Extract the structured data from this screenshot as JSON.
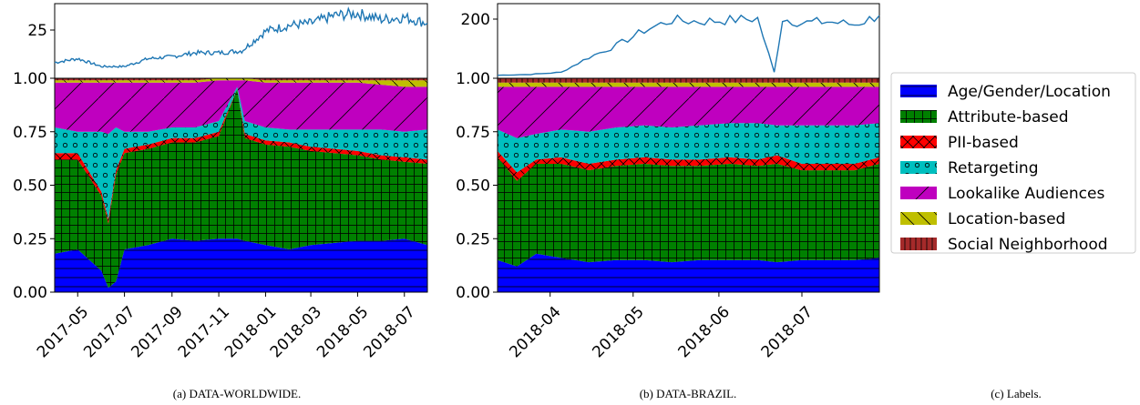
{
  "chart_data": [
    {
      "id": "worldwide",
      "type": "area",
      "caption": "(a) DATA-WORLDWIDE.",
      "stacked_normalized": true,
      "x_ticks": [
        "2017-05",
        "2017-07",
        "2017-09",
        "2017-11",
        "2018-01",
        "2018-03",
        "2018-05",
        "2018-07"
      ],
      "x_range": [
        "2017-04-01",
        "2018-07-31"
      ],
      "top_panel": {
        "type": "line",
        "y_ticks": [
          25
        ],
        "ylim": [
          0,
          38
        ],
        "x_dates": [
          "2017-04-01",
          "2017-05-01",
          "2017-06-01",
          "2017-07-01",
          "2017-08-01",
          "2017-09-01",
          "2017-10-01",
          "2017-11-01",
          "2017-12-01",
          "2018-01-01",
          "2018-02-01",
          "2018-03-01",
          "2018-04-01",
          "2018-05-01",
          "2018-06-01",
          "2018-07-01",
          "2018-07-31"
        ],
        "values": [
          8,
          10,
          6,
          6,
          10,
          11,
          13,
          13,
          14,
          24,
          27,
          28,
          32,
          33,
          30,
          31,
          28
        ]
      },
      "y_ticks": [
        "0.00",
        "0.25",
        "0.50",
        "0.75",
        "1.00"
      ],
      "ylim": [
        0,
        1
      ],
      "x_dates": [
        "2017-04-01",
        "2017-05-01",
        "2017-06-01",
        "2017-06-10",
        "2017-06-20",
        "2017-07-01",
        "2017-08-01",
        "2017-09-01",
        "2017-10-01",
        "2017-11-01",
        "2017-11-25",
        "2017-12-05",
        "2018-01-01",
        "2018-02-01",
        "2018-03-01",
        "2018-04-01",
        "2018-05-01",
        "2018-06-01",
        "2018-07-01",
        "2018-07-31"
      ],
      "series": [
        {
          "name": "Age/Gender/Location",
          "values": [
            0.18,
            0.2,
            0.1,
            0.02,
            0.05,
            0.2,
            0.22,
            0.25,
            0.24,
            0.25,
            0.25,
            0.24,
            0.22,
            0.2,
            0.22,
            0.23,
            0.24,
            0.24,
            0.25,
            0.22
          ]
        },
        {
          "name": "Attribute-based",
          "values": [
            0.44,
            0.42,
            0.35,
            0.3,
            0.5,
            0.45,
            0.45,
            0.45,
            0.46,
            0.48,
            0.7,
            0.48,
            0.47,
            0.48,
            0.44,
            0.42,
            0.4,
            0.38,
            0.36,
            0.38
          ]
        },
        {
          "name": "PII-based",
          "values": [
            0.03,
            0.03,
            0.02,
            0.02,
            0.02,
            0.02,
            0.02,
            0.02,
            0.02,
            0.02,
            0.0,
            0.02,
            0.02,
            0.02,
            0.02,
            0.02,
            0.02,
            0.02,
            0.02,
            0.02
          ]
        },
        {
          "name": "Retargeting",
          "values": [
            0.12,
            0.1,
            0.28,
            0.4,
            0.2,
            0.08,
            0.06,
            0.05,
            0.05,
            0.05,
            0.01,
            0.06,
            0.06,
            0.06,
            0.08,
            0.09,
            0.1,
            0.12,
            0.12,
            0.14
          ]
        },
        {
          "name": "Lookalike Audiences",
          "values": [
            0.21,
            0.23,
            0.23,
            0.24,
            0.21,
            0.23,
            0.23,
            0.21,
            0.21,
            0.19,
            0.03,
            0.19,
            0.21,
            0.22,
            0.22,
            0.22,
            0.22,
            0.21,
            0.21,
            0.2
          ]
        },
        {
          "name": "Location-based",
          "values": [
            0.01,
            0.01,
            0.01,
            0.01,
            0.01,
            0.01,
            0.01,
            0.01,
            0.01,
            0.01,
            0.01,
            0.01,
            0.01,
            0.01,
            0.01,
            0.01,
            0.01,
            0.02,
            0.03,
            0.03
          ]
        },
        {
          "name": "Social Neighborhood",
          "values": [
            0.01,
            0.01,
            0.01,
            0.01,
            0.01,
            0.01,
            0.01,
            0.01,
            0.01,
            0.0,
            0.0,
            0.0,
            0.01,
            0.01,
            0.01,
            0.01,
            0.01,
            0.01,
            0.01,
            0.01
          ]
        }
      ]
    },
    {
      "id": "brazil",
      "type": "area",
      "caption": "(b) DATA-BRAZIL.",
      "stacked_normalized": true,
      "x_ticks": [
        "2018-04",
        "2018-05",
        "2018-06",
        "2018-07"
      ],
      "x_range": [
        "2018-03-13",
        "2018-07-29"
      ],
      "top_panel": {
        "type": "line",
        "y_ticks": [
          200
        ],
        "ylim": [
          0,
          250
        ],
        "x_dates": [
          "2018-03-13",
          "2018-03-25",
          "2018-04-05",
          "2018-04-15",
          "2018-04-25",
          "2018-05-05",
          "2018-05-15",
          "2018-05-25",
          "2018-06-05",
          "2018-06-15",
          "2018-06-21",
          "2018-06-24",
          "2018-07-01",
          "2018-07-10",
          "2018-07-20",
          "2018-07-29"
        ],
        "values": [
          10,
          13,
          20,
          70,
          110,
          160,
          195,
          190,
          195,
          200,
          20,
          200,
          185,
          190,
          180,
          210
        ]
      },
      "y_ticks": [
        "0.00",
        "0.25",
        "0.50",
        "0.75",
        "1.00"
      ],
      "ylim": [
        0,
        1
      ],
      "x_dates": [
        "2018-03-13",
        "2018-03-20",
        "2018-03-27",
        "2018-04-05",
        "2018-04-15",
        "2018-04-25",
        "2018-05-05",
        "2018-05-15",
        "2018-05-25",
        "2018-06-05",
        "2018-06-15",
        "2018-06-22",
        "2018-07-01",
        "2018-07-10",
        "2018-07-20",
        "2018-07-29"
      ],
      "series": [
        {
          "name": "Age/Gender/Location",
          "values": [
            0.15,
            0.12,
            0.18,
            0.16,
            0.14,
            0.15,
            0.15,
            0.14,
            0.15,
            0.15,
            0.15,
            0.14,
            0.15,
            0.15,
            0.15,
            0.16
          ]
        },
        {
          "name": "Attribute-based",
          "values": [
            0.48,
            0.4,
            0.42,
            0.44,
            0.43,
            0.44,
            0.45,
            0.45,
            0.44,
            0.45,
            0.44,
            0.46,
            0.42,
            0.42,
            0.42,
            0.44
          ]
        },
        {
          "name": "PII-based",
          "values": [
            0.03,
            0.04,
            0.02,
            0.03,
            0.03,
            0.03,
            0.03,
            0.03,
            0.03,
            0.03,
            0.03,
            0.04,
            0.03,
            0.03,
            0.03,
            0.03
          ]
        },
        {
          "name": "Retargeting",
          "values": [
            0.1,
            0.16,
            0.12,
            0.13,
            0.15,
            0.15,
            0.15,
            0.15,
            0.16,
            0.16,
            0.17,
            0.14,
            0.18,
            0.18,
            0.18,
            0.16
          ]
        },
        {
          "name": "Lookalike Audiences",
          "values": [
            0.2,
            0.24,
            0.22,
            0.2,
            0.21,
            0.19,
            0.18,
            0.19,
            0.18,
            0.17,
            0.17,
            0.18,
            0.18,
            0.18,
            0.18,
            0.17
          ]
        },
        {
          "name": "Location-based",
          "values": [
            0.02,
            0.02,
            0.02,
            0.02,
            0.02,
            0.02,
            0.02,
            0.02,
            0.02,
            0.02,
            0.02,
            0.02,
            0.02,
            0.02,
            0.02,
            0.02
          ]
        },
        {
          "name": "Social Neighborhood",
          "values": [
            0.02,
            0.02,
            0.02,
            0.02,
            0.02,
            0.02,
            0.02,
            0.02,
            0.02,
            0.02,
            0.02,
            0.02,
            0.02,
            0.02,
            0.02,
            0.02
          ]
        }
      ]
    }
  ],
  "legend": {
    "caption": "(c) Labels.",
    "items": [
      {
        "label": "Age/Gender/Location",
        "color": "#0000ff",
        "hatch": "horizontal"
      },
      {
        "label": "Attribute-based",
        "color": "#008000",
        "hatch": "grid"
      },
      {
        "label": "PII-based",
        "color": "#ff0000",
        "hatch": "cross"
      },
      {
        "label": "Retargeting",
        "color": "#00bfbf",
        "hatch": "circles"
      },
      {
        "label": "Lookalike Audiences",
        "color": "#bf00bf",
        "hatch": "forward-diagonal"
      },
      {
        "label": "Location-based",
        "color": "#bfbf00",
        "hatch": "back-diagonal"
      },
      {
        "label": "Social Neighborhood",
        "color": "#a52a2a",
        "hatch": "vertical"
      }
    ]
  }
}
